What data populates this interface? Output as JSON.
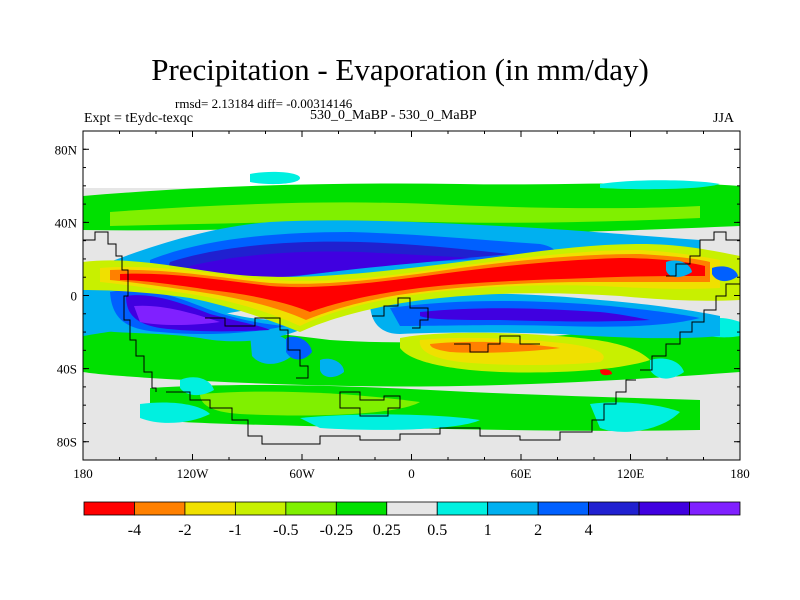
{
  "chart_data": {
    "type": "heatmap",
    "title": "Precipitation - Evaporation (in mm/day)",
    "stats": "rmsd= 2.13184 diff= -0.00314146",
    "left_label": "Expt = tEydc-texqc",
    "center_label": "530_0_MaBP - 530_0_MaBP",
    "right_label": "JJA",
    "x_range": [
      -180,
      180
    ],
    "y_range": [
      -90,
      90
    ],
    "x_ticks": [
      {
        "value": -180,
        "label": "180"
      },
      {
        "value": -120,
        "label": "120W"
      },
      {
        "value": -60,
        "label": "60W"
      },
      {
        "value": 0,
        "label": "0"
      },
      {
        "value": 60,
        "label": "60E"
      },
      {
        "value": 120,
        "label": "120E"
      },
      {
        "value": 180,
        "label": "180"
      }
    ],
    "y_ticks": [
      {
        "value": 80,
        "label": "80N"
      },
      {
        "value": 40,
        "label": "40N"
      },
      {
        "value": 0,
        "label": "0"
      },
      {
        "value": -40,
        "label": "40S"
      },
      {
        "value": -80,
        "label": "80S"
      }
    ],
    "colorbar": {
      "colors": [
        "#ff0000",
        "#ff8000",
        "#f0e000",
        "#c8f000",
        "#80f000",
        "#00e000",
        "#e6e6e6",
        "#00f0e0",
        "#00b0f0",
        "#0060ff",
        "#2020d0",
        "#4000e0",
        "#8020ff"
      ],
      "labels": [
        "-4",
        "-2",
        "-1",
        "-0.5",
        "-0.25",
        "0.25",
        "0.5",
        "1",
        "2",
        "4"
      ]
    },
    "features": [
      {
        "name": "tropical-pacific-maximum",
        "level": "-4",
        "lon": -80,
        "lat": 5,
        "rx": 70,
        "ry": 10
      },
      {
        "name": "tropical-atlantic-maximum",
        "level": "-4",
        "lon": 40,
        "lat": 12,
        "rx": 40,
        "ry": 8
      },
      {
        "name": "north-subtropical-minimum",
        "level": "2",
        "lon": -100,
        "lat": 20,
        "rx": 55,
        "ry": 9
      },
      {
        "name": "south-subtropical-minimum",
        "level": "4",
        "lon": -160,
        "lat": -8,
        "rx": 30,
        "ry": 12
      },
      {
        "name": "south-band-minimum",
        "level": "2",
        "lon": 60,
        "lat": -12,
        "rx": 80,
        "ry": 6
      },
      {
        "name": "southern-positive-patch",
        "level": "-2",
        "lon": 50,
        "lat": -35,
        "rx": 35,
        "ry": 8
      },
      {
        "name": "indian-ocean-positive",
        "level": "-0.5",
        "lon": 60,
        "lat": -40,
        "rx": 50,
        "ry": 12
      }
    ]
  }
}
